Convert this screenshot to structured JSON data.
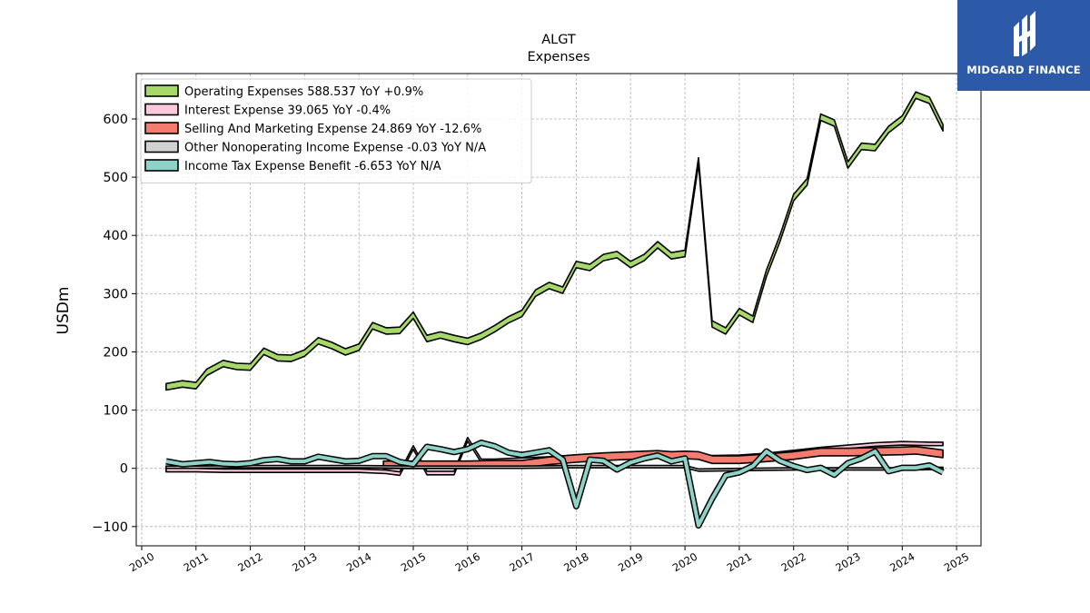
{
  "brand": {
    "name": "MIDGARD FINANCE",
    "color": "#2d5aa8",
    "icon": "midgard-logo-icon"
  },
  "chart_data": {
    "type": "line",
    "title": "ALGT",
    "subtitle": "Expenses",
    "ylabel": "USDm",
    "xlabel": "",
    "xlim": [
      2009.9,
      2025.45
    ],
    "ylim": [
      -133,
      678
    ],
    "yticks": [
      -100,
      0,
      100,
      200,
      300,
      400,
      500,
      600
    ],
    "ytick_labels": [
      "−100",
      "0",
      "100",
      "200",
      "300",
      "400",
      "500",
      "600"
    ],
    "xticks": [
      2010,
      2011,
      2012,
      2013,
      2014,
      2015,
      2016,
      2017,
      2018,
      2019,
      2020,
      2021,
      2022,
      2023,
      2024,
      2025
    ],
    "xtick_labels": [
      "2010",
      "2011",
      "2012",
      "2013",
      "2014",
      "2015",
      "2016",
      "2017",
      "2018",
      "2019",
      "2020",
      "2021",
      "2022",
      "2023",
      "2024",
      "2025"
    ],
    "grid": true,
    "legend_position": "top-left",
    "series": [
      {
        "name": "Operating Expenses",
        "legend": "Operating Expenses  588.537 YoY +0.9%",
        "color": "#a6d96a",
        "band": 11,
        "points": [
          [
            2010.45,
            140
          ],
          [
            2010.75,
            145
          ],
          [
            2011.0,
            142
          ],
          [
            2011.2,
            165
          ],
          [
            2011.5,
            180
          ],
          [
            2011.75,
            175
          ],
          [
            2012.0,
            174
          ],
          [
            2012.25,
            201
          ],
          [
            2012.5,
            190
          ],
          [
            2012.75,
            189
          ],
          [
            2013.0,
            198
          ],
          [
            2013.25,
            219
          ],
          [
            2013.5,
            211
          ],
          [
            2013.75,
            200
          ],
          [
            2014.0,
            208
          ],
          [
            2014.25,
            245
          ],
          [
            2014.5,
            236
          ],
          [
            2014.75,
            237
          ],
          [
            2015.0,
            263
          ],
          [
            2015.25,
            223
          ],
          [
            2015.5,
            229
          ],
          [
            2015.75,
            223
          ],
          [
            2016.0,
            218
          ],
          [
            2016.25,
            227
          ],
          [
            2016.5,
            240
          ],
          [
            2016.75,
            255
          ],
          [
            2017.0,
            266
          ],
          [
            2017.25,
            301
          ],
          [
            2017.5,
            314
          ],
          [
            2017.75,
            306
          ],
          [
            2018.0,
            350
          ],
          [
            2018.25,
            345
          ],
          [
            2018.5,
            362
          ],
          [
            2018.75,
            367
          ],
          [
            2019.0,
            350
          ],
          [
            2019.25,
            362
          ],
          [
            2019.5,
            384
          ],
          [
            2019.75,
            365
          ],
          [
            2020.0,
            369
          ],
          [
            2020.25,
            528
          ],
          [
            2020.5,
            248
          ],
          [
            2020.75,
            236
          ],
          [
            2021.0,
            269
          ],
          [
            2021.25,
            256
          ],
          [
            2021.5,
            335
          ],
          [
            2021.75,
            395
          ],
          [
            2022.0,
            465
          ],
          [
            2022.25,
            492
          ],
          [
            2022.5,
            603
          ],
          [
            2022.75,
            593
          ],
          [
            2023.0,
            521
          ],
          [
            2023.25,
            553
          ],
          [
            2023.5,
            551
          ],
          [
            2023.75,
            582
          ],
          [
            2024.0,
            600
          ],
          [
            2024.25,
            641
          ],
          [
            2024.5,
            632
          ],
          [
            2024.75,
            585
          ]
        ]
      },
      {
        "name": "Interest Expense",
        "legend": "Interest Expense  39.065 YoY -0.4%",
        "color": "#fbc8dc",
        "band": 6,
        "points": [
          [
            2010.45,
            -3
          ],
          [
            2011.0,
            -3
          ],
          [
            2011.5,
            -4
          ],
          [
            2012.0,
            -4
          ],
          [
            2012.5,
            -4
          ],
          [
            2013.0,
            -4
          ],
          [
            2013.5,
            -4
          ],
          [
            2014.0,
            -4
          ],
          [
            2014.5,
            -6
          ],
          [
            2014.75,
            -9
          ],
          [
            2015.0,
            36
          ],
          [
            2015.25,
            -8
          ],
          [
            2015.5,
            -8
          ],
          [
            2015.75,
            -8
          ],
          [
            2016.0,
            50
          ],
          [
            2016.25,
            13
          ],
          [
            2016.5,
            13
          ],
          [
            2016.75,
            14
          ],
          [
            2017.0,
            15
          ],
          [
            2017.5,
            17
          ],
          [
            2018.0,
            20
          ],
          [
            2018.5,
            22
          ],
          [
            2019.0,
            25
          ],
          [
            2019.5,
            26
          ],
          [
            2020.0,
            25
          ],
          [
            2020.5,
            19
          ],
          [
            2021.0,
            20
          ],
          [
            2021.5,
            23
          ],
          [
            2022.0,
            28
          ],
          [
            2022.5,
            33
          ],
          [
            2023.0,
            37
          ],
          [
            2023.5,
            41
          ],
          [
            2024.0,
            43
          ],
          [
            2024.5,
            42
          ],
          [
            2024.75,
            42
          ]
        ]
      },
      {
        "name": "Selling And Marketing Expense",
        "legend": "Selling And Marketing Expense  24.869 YoY -12.6%",
        "color": "#f47c6e",
        "band": 13,
        "points": [
          [
            2014.45,
            6
          ],
          [
            2014.75,
            6
          ],
          [
            2015.0,
            6
          ],
          [
            2015.5,
            6
          ],
          [
            2016.0,
            6
          ],
          [
            2016.5,
            7
          ],
          [
            2017.0,
            7
          ],
          [
            2017.5,
            13
          ],
          [
            2018.0,
            17
          ],
          [
            2018.5,
            20
          ],
          [
            2019.0,
            22
          ],
          [
            2019.5,
            24
          ],
          [
            2019.75,
            22
          ],
          [
            2020.0,
            23
          ],
          [
            2020.25,
            22
          ],
          [
            2020.5,
            15
          ],
          [
            2020.75,
            15
          ],
          [
            2021.0,
            15
          ],
          [
            2021.5,
            18
          ],
          [
            2022.0,
            22
          ],
          [
            2022.5,
            28
          ],
          [
            2023.0,
            28
          ],
          [
            2023.5,
            29
          ],
          [
            2024.0,
            30
          ],
          [
            2024.25,
            31
          ],
          [
            2024.5,
            28
          ],
          [
            2024.75,
            25
          ]
        ]
      },
      {
        "name": "Other Nonoperating Income Expense",
        "legend": "Other Nonoperating Income Expense  -0.03 YoY N/A",
        "color": "#cfd2d0",
        "band": 4,
        "points": [
          [
            2010.45,
            2
          ],
          [
            2011.0,
            2
          ],
          [
            2012.0,
            3
          ],
          [
            2013.0,
            3
          ],
          [
            2014.0,
            3
          ],
          [
            2015.0,
            2
          ],
          [
            2016.0,
            2
          ],
          [
            2017.0,
            2
          ],
          [
            2018.0,
            3
          ],
          [
            2019.0,
            3
          ],
          [
            2020.0,
            3
          ],
          [
            2020.25,
            -3
          ],
          [
            2021.0,
            -2
          ],
          [
            2022.0,
            -1
          ],
          [
            2023.0,
            -1
          ],
          [
            2024.0,
            -1
          ],
          [
            2024.75,
            0
          ]
        ]
      },
      {
        "name": "Income Tax Expense Benefit",
        "legend": "Income Tax Expense Benefit  -6.653 YoY N/A",
        "color": "#8dd3c7",
        "band": 0,
        "points": [
          [
            2010.45,
            12
          ],
          [
            2010.75,
            7
          ],
          [
            2011.25,
            11
          ],
          [
            2011.5,
            8
          ],
          [
            2011.75,
            7
          ],
          [
            2012.0,
            9
          ],
          [
            2012.25,
            14
          ],
          [
            2012.5,
            16
          ],
          [
            2012.75,
            12
          ],
          [
            2013.0,
            12
          ],
          [
            2013.25,
            20
          ],
          [
            2013.5,
            16
          ],
          [
            2013.75,
            12
          ],
          [
            2014.0,
            13
          ],
          [
            2014.25,
            21
          ],
          [
            2014.5,
            21
          ],
          [
            2014.75,
            11
          ],
          [
            2015.0,
            7
          ],
          [
            2015.25,
            37
          ],
          [
            2015.5,
            33
          ],
          [
            2015.75,
            28
          ],
          [
            2016.0,
            33
          ],
          [
            2016.25,
            44
          ],
          [
            2016.5,
            38
          ],
          [
            2016.75,
            27
          ],
          [
            2017.0,
            23
          ],
          [
            2017.25,
            27
          ],
          [
            2017.5,
            31
          ],
          [
            2017.75,
            15
          ],
          [
            2018.0,
            -65
          ],
          [
            2018.25,
            15
          ],
          [
            2018.5,
            13
          ],
          [
            2018.75,
            -2
          ],
          [
            2019.0,
            10
          ],
          [
            2019.25,
            17
          ],
          [
            2019.5,
            22
          ],
          [
            2019.75,
            12
          ],
          [
            2020.0,
            17
          ],
          [
            2020.25,
            -98
          ],
          [
            2020.5,
            -52
          ],
          [
            2020.75,
            -12
          ],
          [
            2021.0,
            -7
          ],
          [
            2021.25,
            4
          ],
          [
            2021.5,
            29
          ],
          [
            2021.75,
            13
          ],
          [
            2022.0,
            4
          ],
          [
            2022.25,
            -3
          ],
          [
            2022.5,
            1
          ],
          [
            2022.75,
            -11
          ],
          [
            2023.0,
            9
          ],
          [
            2023.25,
            17
          ],
          [
            2023.5,
            29
          ],
          [
            2023.75,
            -5
          ],
          [
            2024.0,
            1
          ],
          [
            2024.25,
            1
          ],
          [
            2024.5,
            5
          ],
          [
            2024.75,
            -7
          ]
        ]
      }
    ]
  }
}
